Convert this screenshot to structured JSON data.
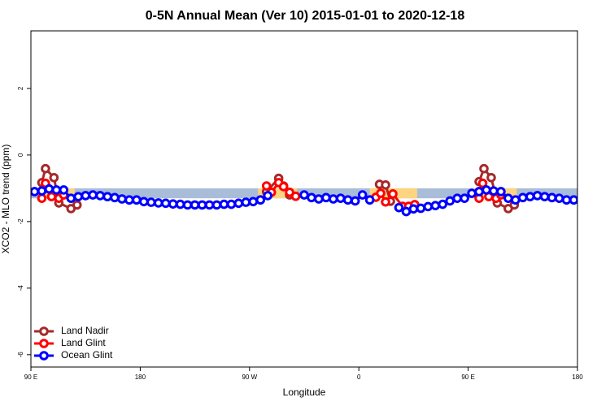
{
  "chart_data": {
    "type": "line",
    "title": "0-5N Annual Mean (Ver 10)   2015-01-01 to 2020-12-18",
    "x_label": "Longitude",
    "y_label": "XCO2 - MLO trend (ppm)",
    "xlim": [
      90,
      540
    ],
    "ylim": [
      -6.37,
      3.73
    ],
    "xticks": [
      {
        "value": 90,
        "label": "90 E"
      },
      180,
      {
        "value": 270,
        "label": "90 W"
      },
      {
        "value": 360,
        "label": "0"
      },
      {
        "value": 450,
        "label": "90 E"
      },
      {
        "value": 540,
        "label": "180"
      }
    ],
    "yticks": [
      -6,
      -4,
      -2,
      0,
      2
    ],
    "legend": "bottomleft",
    "reference_band": {
      "y": [
        -1.3,
        -1.0
      ],
      "color": "#a9bdd9"
    },
    "highlight_regions": [
      {
        "x": [
          98,
          126
        ],
        "y": [
          -1.3,
          -1.0
        ],
        "color": "#fdd47f"
      },
      {
        "x": [
          277,
          309
        ],
        "y": [
          -1.3,
          -1.0
        ],
        "color": "#fdd47f"
      },
      {
        "x": [
          369,
          408
        ],
        "y": [
          -1.3,
          -1.0
        ],
        "color": "#fdd47f"
      },
      {
        "x": [
          454,
          490
        ],
        "y": [
          -1.3,
          -1.0
        ],
        "color": "#fdd47f"
      }
    ],
    "series": [
      {
        "name": "Land Nadir",
        "color": "#a52a2a",
        "x": [
          99,
          102,
          109,
          113,
          123,
          128,
          200,
          284,
          294,
          298,
          303,
          340,
          377,
          382,
          386,
          420,
          459,
          463,
          469,
          474,
          483,
          488
        ],
        "values": [
          -0.83,
          -0.41,
          -0.68,
          -1.44,
          -1.61,
          -1.5,
          null,
          -1.1,
          -0.7,
          -0.93,
          -1.2,
          null,
          -0.88,
          -0.9,
          -1.39,
          null,
          -0.8,
          -0.41,
          -0.68,
          -1.44,
          -1.61,
          -1.5
        ]
      },
      {
        "name": "Land Glint",
        "color": "#ff0000",
        "x": [
          99,
          102,
          107,
          113,
          117,
          200,
          284,
          288,
          294,
          298,
          303,
          308,
          340,
          374,
          378,
          382,
          388,
          396,
          401,
          406,
          420,
          459,
          462,
          467,
          473,
          477
        ],
        "values": [
          -1.3,
          -0.85,
          -1.25,
          -1.3,
          -1.2,
          null,
          -0.93,
          -1.12,
          -0.83,
          -0.95,
          -1.12,
          -1.24,
          null,
          -1.27,
          -1.15,
          -1.41,
          -1.17,
          -1.54,
          -1.54,
          -1.49,
          null,
          -1.3,
          -0.85,
          -1.25,
          -1.3,
          -1.2
        ]
      },
      {
        "name": "Ocean Glint",
        "color": "#0000ff",
        "x": [
          93,
          99,
          105,
          111,
          117,
          123,
          129,
          135,
          141,
          147,
          153,
          159,
          165,
          171,
          177,
          183,
          189,
          195,
          201,
          207,
          213,
          219,
          225,
          231,
          237,
          243,
          249,
          255,
          261,
          267,
          273,
          279,
          285,
          291,
          297,
          303,
          309,
          315,
          321,
          327,
          333,
          339,
          345,
          351,
          357,
          363,
          369,
          375,
          381,
          387,
          393,
          399,
          405,
          411,
          417,
          423,
          429,
          435,
          441,
          447,
          453,
          459,
          465,
          471,
          477,
          483,
          489,
          495,
          501,
          507,
          513,
          519,
          525,
          531,
          537
        ],
        "values": [
          -1.1,
          -1.08,
          -1.02,
          -1.05,
          -1.05,
          -1.3,
          -1.25,
          -1.22,
          -1.2,
          -1.22,
          -1.25,
          -1.28,
          -1.32,
          -1.35,
          -1.35,
          -1.4,
          -1.42,
          -1.44,
          -1.45,
          -1.47,
          -1.48,
          -1.5,
          -1.5,
          -1.5,
          -1.5,
          -1.5,
          -1.48,
          -1.48,
          -1.45,
          -1.42,
          -1.4,
          -1.35,
          -1.22,
          null,
          null,
          null,
          null,
          -1.2,
          -1.28,
          -1.32,
          -1.28,
          -1.32,
          -1.3,
          -1.35,
          -1.38,
          -1.2,
          -1.35,
          null,
          null,
          null,
          -1.58,
          -1.7,
          -1.62,
          -1.6,
          -1.55,
          -1.52,
          -1.48,
          -1.38,
          -1.3,
          -1.3,
          -1.15,
          -1.1,
          -1.05,
          -1.08,
          -1.1,
          -1.3,
          -1.35,
          -1.28,
          -1.25,
          -1.22,
          -1.25,
          -1.28,
          -1.3,
          -1.35,
          -1.35
        ]
      }
    ]
  }
}
